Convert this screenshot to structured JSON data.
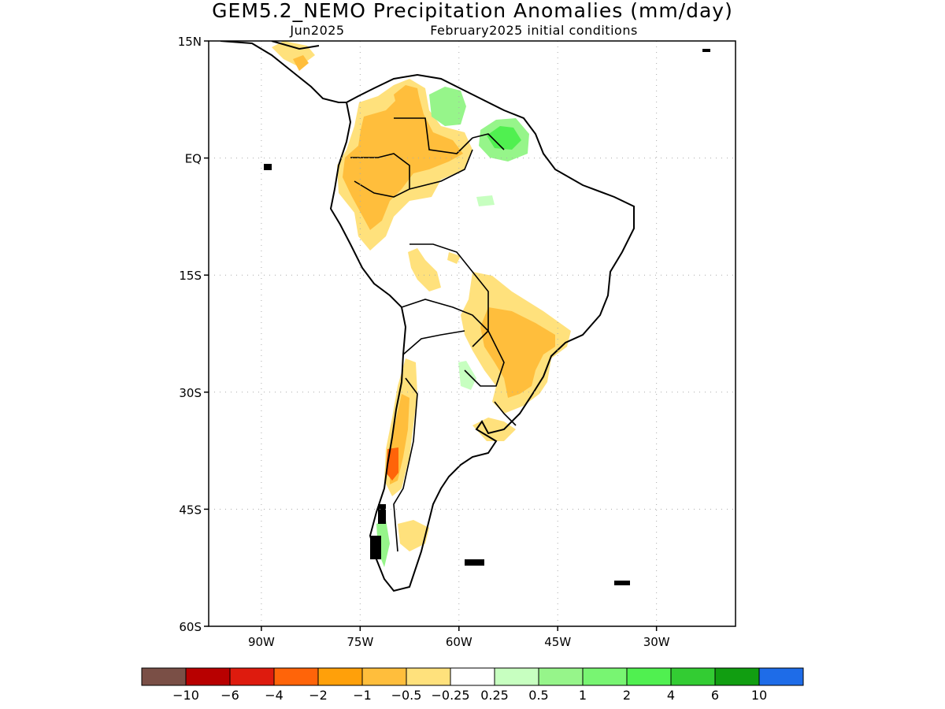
{
  "title": "GEM5.2_NEMO Precipitation Anomalies (mm/day)",
  "subtitle_left": "Jun2025",
  "subtitle_right": "February2025 initial conditions",
  "map": {
    "lon_range": [
      -98,
      -18
    ],
    "lat_range": [
      -60,
      15
    ],
    "lat_ticks": [
      {
        "value": 15,
        "label": "15N"
      },
      {
        "value": 0,
        "label": "EQ"
      },
      {
        "value": -15,
        "label": "15S"
      },
      {
        "value": -30,
        "label": "30S"
      },
      {
        "value": -45,
        "label": "45S"
      },
      {
        "value": -60,
        "label": "60S"
      }
    ],
    "lon_ticks": [
      {
        "value": -90,
        "label": "90W"
      },
      {
        "value": -75,
        "label": "75W"
      },
      {
        "value": -60,
        "label": "60W"
      },
      {
        "value": -45,
        "label": "45W"
      },
      {
        "value": -30,
        "label": "30W"
      }
    ],
    "grid": true
  },
  "colorbar": {
    "colors": [
      "#7a4f46",
      "#b80000",
      "#de1b0e",
      "#ff6409",
      "#ffa00a",
      "#ffbe3c",
      "#ffe17c",
      "#ffffff",
      "#c7ffc0",
      "#96f58a",
      "#78f572",
      "#50f050",
      "#33cc33",
      "#119e11",
      "#1e6ce8"
    ],
    "labels": [
      "−10",
      "−6",
      "−4",
      "−2",
      "−1",
      "−0.5",
      "−0.25",
      "0.25",
      "0.5",
      "1",
      "2",
      "4",
      "6",
      "10"
    ]
  }
}
